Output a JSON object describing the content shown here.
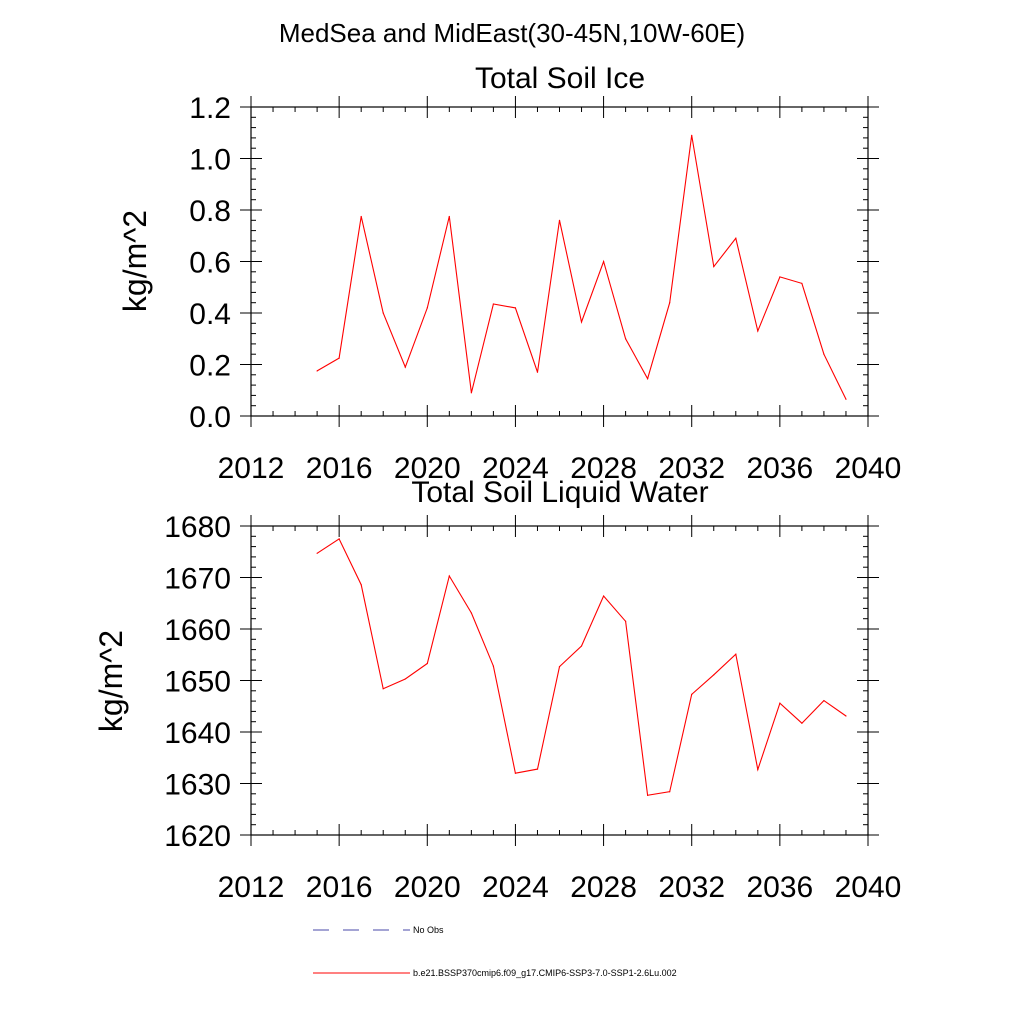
{
  "figure": {
    "title": "MedSea and MidEast(30-45N,10W-60E)"
  },
  "chart_data": [
    {
      "type": "line",
      "title": "Total Soil Ice",
      "ylabel": "kg/m^2",
      "xlabel": "",
      "xlim": [
        2012,
        2040
      ],
      "ylim": [
        0.0,
        1.2
      ],
      "x_ticks": [
        "2012",
        "2016",
        "2020",
        "2024",
        "2028",
        "2032",
        "2036",
        "2040"
      ],
      "y_ticks": [
        "0.0",
        "0.2",
        "0.4",
        "0.6",
        "0.8",
        "1.0",
        "1.2"
      ],
      "grid": false,
      "series": [
        {
          "name": "b.e21.BSSP370cmip6.f09_g17.CMIP6-SSP3-7.0-SSP1-2.6Lu.002",
          "color": "#ff0000",
          "x": [
            2015,
            2016,
            2017,
            2018,
            2019,
            2020,
            2021,
            2022,
            2023,
            2024,
            2025,
            2026,
            2027,
            2028,
            2029,
            2030,
            2031,
            2032,
            2033,
            2034,
            2035,
            2036,
            2037,
            2038,
            2039
          ],
          "y": [
            0.175,
            0.225,
            0.775,
            0.4,
            0.19,
            0.42,
            0.775,
            0.09,
            0.435,
            0.42,
            0.17,
            0.76,
            0.365,
            0.6,
            0.3,
            0.145,
            0.44,
            1.09,
            0.58,
            0.69,
            0.33,
            0.54,
            0.515,
            0.24,
            0.065
          ]
        }
      ]
    },
    {
      "type": "line",
      "title": "Total Soil Liquid Water",
      "ylabel": "kg/m^2",
      "xlabel": "",
      "xlim": [
        2012,
        2040
      ],
      "ylim": [
        1620,
        1680
      ],
      "x_ticks": [
        "2012",
        "2016",
        "2020",
        "2024",
        "2028",
        "2032",
        "2036",
        "2040"
      ],
      "y_ticks": [
        "1620",
        "1630",
        "1640",
        "1650",
        "1660",
        "1670",
        "1680"
      ],
      "grid": false,
      "series": [
        {
          "name": "b.e21.BSSP370cmip6.f09_g17.CMIP6-SSP3-7.0-SSP1-2.6Lu.002",
          "color": "#ff0000",
          "x": [
            2015,
            2016,
            2017,
            2018,
            2019,
            2020,
            2021,
            2022,
            2023,
            2024,
            2025,
            2026,
            2027,
            2028,
            2029,
            2030,
            2031,
            2032,
            2033,
            2034,
            2035,
            2036,
            2037,
            2038,
            2039
          ],
          "y": [
            1674.7,
            1677.5,
            1668.6,
            1648.4,
            1650.3,
            1653.3,
            1670.3,
            1663.1,
            1652.8,
            1632.0,
            1632.8,
            1652.7,
            1656.7,
            1666.4,
            1661.5,
            1627.7,
            1628.4,
            1647.3,
            1651.1,
            1655.1,
            1632.7,
            1645.6,
            1641.7,
            1646.1,
            1643.1
          ]
        }
      ]
    }
  ],
  "legend": {
    "placement": "bottom",
    "entries": [
      {
        "label": "No Obs",
        "color": "#4a4aa8",
        "style": "dashed"
      },
      {
        "label": "b.e21.BSSP370cmip6.f09_g17.CMIP6-SSP3-7.0-SSP1-2.6Lu.002",
        "color": "#ff0000",
        "style": "solid"
      }
    ]
  }
}
